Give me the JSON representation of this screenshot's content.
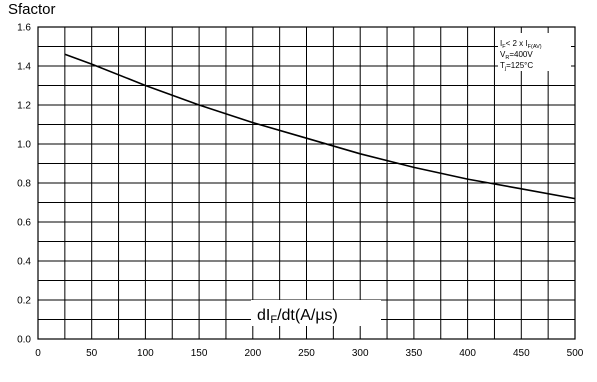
{
  "chart_data": {
    "type": "line",
    "ylabel": "Sfactor",
    "xlabel": {
      "main": "dI",
      "sub": "F",
      "rest": "/dt(A/µs)"
    },
    "xlim": [
      0,
      500
    ],
    "ylim": [
      0,
      1.6
    ],
    "x_ticks": [
      0,
      50,
      100,
      150,
      200,
      250,
      300,
      350,
      400,
      450,
      500
    ],
    "y_ticks": [
      "0.0",
      "0.2",
      "0.4",
      "0.6",
      "0.8",
      "1.0",
      "1.2",
      "1.4",
      "1.6"
    ],
    "grid": true,
    "series": [
      {
        "x": [
          25,
          50,
          100,
          150,
          200,
          250,
          300,
          350,
          400,
          450,
          500
        ],
        "y": [
          1.46,
          1.41,
          1.3,
          1.2,
          1.11,
          1.03,
          0.95,
          0.88,
          0.82,
          0.77,
          0.72
        ]
      }
    ],
    "annotation": [
      {
        "main": "I",
        "sub": "F",
        "rest": "< 2 x I",
        "sub2": "F(AV)"
      },
      {
        "main": "V",
        "sub": "R",
        "rest": "=400V",
        "sub2": ""
      },
      {
        "main": "T",
        "sub": "j",
        "rest": "=125°C",
        "sub2": ""
      }
    ],
    "colors": {
      "line": "#000000",
      "grid": "#000000"
    }
  }
}
